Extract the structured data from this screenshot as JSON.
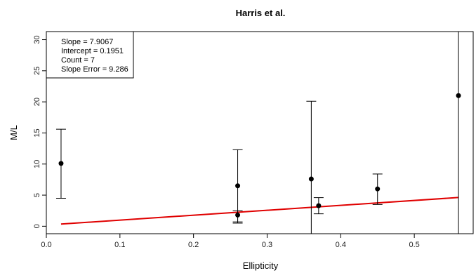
{
  "chart_data": {
    "type": "scatter",
    "title": "Harris et al.",
    "xlabel": "Ellipticity",
    "ylabel": "M/L",
    "xlim": [
      0.0,
      0.58
    ],
    "ylim": [
      -1.2,
      31.3
    ],
    "xticks": [
      "0.0",
      "0.1",
      "0.2",
      "0.3",
      "0.4",
      "0.5"
    ],
    "xtick_values": [
      0.0,
      0.1,
      0.2,
      0.3,
      0.4,
      0.5
    ],
    "yticks": [
      "0",
      "5",
      "10",
      "15",
      "20",
      "25",
      "30"
    ],
    "ytick_values": [
      0,
      5,
      10,
      15,
      20,
      25,
      30
    ],
    "points": [
      {
        "x": 0.02,
        "y": 10.1,
        "lo": 4.5,
        "hi": 15.6
      },
      {
        "x": 0.26,
        "y": 6.5,
        "lo": 0.7,
        "hi": 12.3
      },
      {
        "x": 0.26,
        "y": 1.8,
        "lo": 0.5,
        "hi": 2.5
      },
      {
        "x": 0.36,
        "y": 7.6,
        "lo": -1.2,
        "hi": 20.1
      },
      {
        "x": 0.37,
        "y": 3.3,
        "lo": 2.0,
        "hi": 4.6
      },
      {
        "x": 0.45,
        "y": 6.0,
        "lo": 3.5,
        "hi": 8.4
      },
      {
        "x": 0.56,
        "y": 21.0,
        "lo": -1.2,
        "hi": 31.3
      }
    ],
    "fit_line": {
      "x": [
        0.02,
        0.56
      ],
      "y": [
        0.35,
        4.62
      ],
      "color": "#e00000"
    },
    "legend": {
      "position": "top-left",
      "lines": [
        "Slope = 7.9067",
        "Intercept = 0.1951",
        "Count = 7",
        "Slope Error = 9.286"
      ]
    },
    "grid": false
  }
}
